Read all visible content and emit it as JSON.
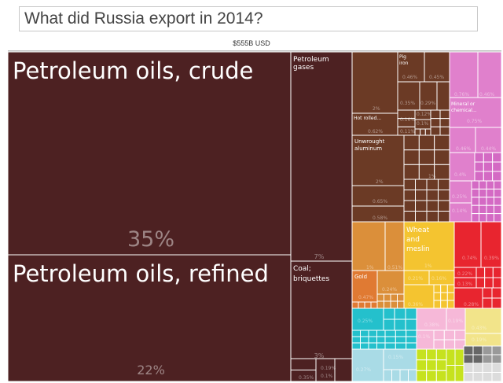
{
  "title": "What did Russia export in 2014?",
  "total": "$555B USD",
  "chart_data": {
    "type": "treemap",
    "total": "$555B USD",
    "items": [
      {
        "name": "Petroleum oils, crude",
        "label": "Petroleum oils, crude",
        "share": "35%",
        "color": "#4d2122"
      },
      {
        "name": "Petroleum oils, refined",
        "label": "Petroleum oils, refined",
        "share": "22%",
        "color": "#4d2122"
      },
      {
        "name": "Petroleum gases",
        "label": "Petroleum gases",
        "share": "7%",
        "color": "#4d2122"
      },
      {
        "name": "Coal; briquettes",
        "label": "Coal; briquettes",
        "share": "3%",
        "color": "#4d2122"
      },
      {
        "name": "Pig iron",
        "label": "Pig iron",
        "share": "0.46%",
        "color": "#6b3a25"
      },
      {
        "name": "Hot rolled...",
        "label": "Hot rolled...",
        "share": "0.62%",
        "color": "#6b3a25"
      },
      {
        "name": "Unwrought aluminum",
        "label": "Unwrought aluminum",
        "share": "2%",
        "color": "#6b3a25"
      },
      {
        "name": "Mineral or chemical...",
        "label": "Mineral or chemical...",
        "share": "0.75%",
        "color": "#e080cc"
      },
      {
        "name": "Wheat and meslin",
        "label": "Wheat and meslin",
        "share": "1%",
        "color": "#f4c430"
      },
      {
        "name": "Gold",
        "label": "Gold",
        "share": "0.47%",
        "color": "#db8f3a"
      }
    ],
    "labels": [
      "2%",
      "0.45%",
      "0.35%",
      "0.29%",
      "0.16%",
      "0.12%",
      "0.1%",
      "0.11%",
      "1%",
      "0.65%",
      "0.58%",
      "0.76%",
      "0.46%",
      "0.44%",
      "0.4%",
      "0.25%",
      "0.14%",
      "1%",
      "0.51%",
      "0.24%",
      "0.21%",
      "0.16%",
      "0.36%",
      "0.74%",
      "0.39%",
      "0.22%",
      "0.13%",
      "0.28%",
      "0.25%",
      "0.38%",
      "0.19%",
      "0.1%",
      "0.43%",
      "0.19%",
      "0.15%",
      "0.27%",
      "0.13%",
      "0.35%",
      "0.1%"
    ]
  }
}
